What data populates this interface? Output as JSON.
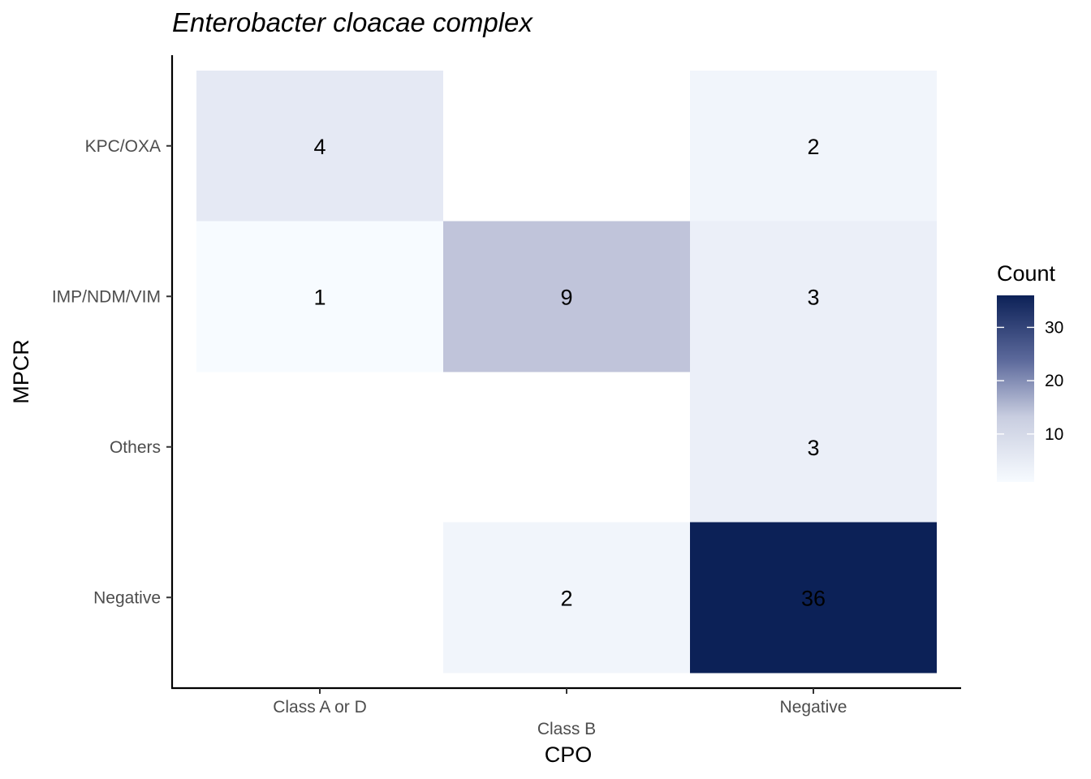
{
  "chart_data": {
    "type": "heatmap",
    "title": "Enterobacter cloacae complex",
    "xlabel": "CPO",
    "ylabel": "MPCR",
    "x_categories": [
      "Class A or D",
      "Class B",
      "Negative"
    ],
    "y_categories": [
      "KPC/OXA",
      "IMP/NDM/VIM",
      "Others",
      "Negative"
    ],
    "cells": [
      {
        "x": "Class A or D",
        "y": "KPC/OXA",
        "value": 4
      },
      {
        "x": "Negative",
        "y": "KPC/OXA",
        "value": 2
      },
      {
        "x": "Class A or D",
        "y": "IMP/NDM/VIM",
        "value": 1
      },
      {
        "x": "Class B",
        "y": "IMP/NDM/VIM",
        "value": 9
      },
      {
        "x": "Negative",
        "y": "IMP/NDM/VIM",
        "value": 3
      },
      {
        "x": "Negative",
        "y": "Others",
        "value": 3
      },
      {
        "x": "Class B",
        "y": "Negative",
        "value": 2
      },
      {
        "x": "Negative",
        "y": "Negative",
        "value": 36
      }
    ],
    "legend": {
      "title": "Count",
      "ticks": [
        10,
        20,
        30
      ],
      "range": [
        1,
        36
      ],
      "placement": "right",
      "low_color": "#f7fbff",
      "high_color": "#0c2157"
    },
    "grid": false
  }
}
